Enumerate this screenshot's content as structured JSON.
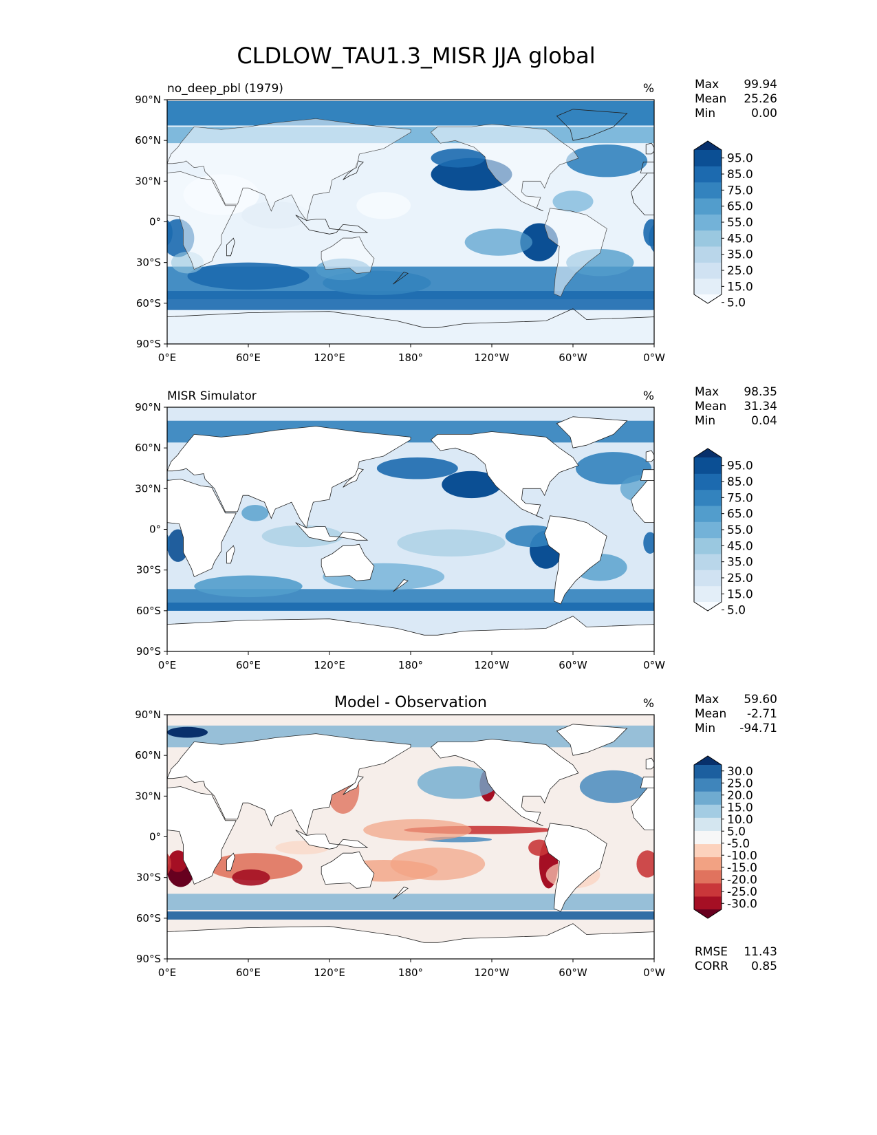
{
  "chart_data": {
    "type": "heatmap",
    "title": "CLDLOW_TAU1.3_MISR JJA global",
    "x_ticks": [
      "0°E",
      "60°E",
      "120°E",
      "180°",
      "120°W",
      "60°W",
      "0°W"
    ],
    "y_ticks": [
      "90°N",
      "60°N",
      "30°N",
      "0°",
      "30°S",
      "60°S",
      "90°S"
    ],
    "xlim": [
      0,
      360
    ],
    "ylim": [
      -90,
      90
    ],
    "panels": [
      {
        "id": "model",
        "title_left": "no_deep_pbl (1979)",
        "title_center": "",
        "units": "%",
        "stats": [
          {
            "label": "Max",
            "value": "99.94"
          },
          {
            "label": "Mean",
            "value": "25.26"
          },
          {
            "label": "Min",
            "value": "0.00"
          }
        ],
        "colorbar": {
          "ticks": [
            "95.0",
            "85.0",
            "75.0",
            "65.0",
            "55.0",
            "45.0",
            "35.0",
            "25.0",
            "15.0",
            "5.0"
          ],
          "colors": [
            "#f7fbff",
            "#e3eef8",
            "#d0e2f2",
            "#b9d6ea",
            "#9ac8e0",
            "#73b2d8",
            "#529dcc",
            "#3383be",
            "#1c6aaf",
            "#0b4f94",
            "#08306b"
          ]
        },
        "base_color": "#eaf3fb"
      },
      {
        "id": "obs",
        "title_left": "MISR Simulator",
        "title_center": "",
        "units": "%",
        "stats": [
          {
            "label": "Max",
            "value": "98.35"
          },
          {
            "label": "Mean",
            "value": "31.34"
          },
          {
            "label": "Min",
            "value": "0.04"
          }
        ],
        "colorbar": {
          "ticks": [
            "95.0",
            "85.0",
            "75.0",
            "65.0",
            "55.0",
            "45.0",
            "35.0",
            "25.0",
            "15.0",
            "5.0"
          ],
          "colors": [
            "#f7fbff",
            "#e3eef8",
            "#d0e2f2",
            "#b9d6ea",
            "#9ac8e0",
            "#73b2d8",
            "#529dcc",
            "#3383be",
            "#1c6aaf",
            "#0b4f94",
            "#08306b"
          ]
        },
        "base_color": "#dbe9f6"
      },
      {
        "id": "diff",
        "title_left": "",
        "title_center": "Model - Observation",
        "units": "%",
        "stats": [
          {
            "label": "Max",
            "value": "59.60"
          },
          {
            "label": "Mean",
            "value": "-2.71"
          },
          {
            "label": "Min",
            "value": "-94.71"
          }
        ],
        "extra_stats": [
          {
            "label": "RMSE",
            "value": "11.43"
          },
          {
            "label": "CORR",
            "value": "0.85"
          }
        ],
        "colorbar": {
          "ticks": [
            "30.0",
            "25.0",
            "20.0",
            "15.0",
            "10.0",
            "5.0",
            "-5.0",
            "-10.0",
            "-15.0",
            "-20.0",
            "-25.0",
            "-30.0"
          ],
          "colors": [
            "#67001f",
            "#a50f24",
            "#c9373a",
            "#e0735e",
            "#f2a283",
            "#fcd2bd",
            "#f7f7f7",
            "#d4e6f0",
            "#a3cce3",
            "#6fabd0",
            "#3f85bb",
            "#1c5f9f",
            "#08306b"
          ]
        },
        "base_color": "#f6eeea"
      }
    ]
  }
}
